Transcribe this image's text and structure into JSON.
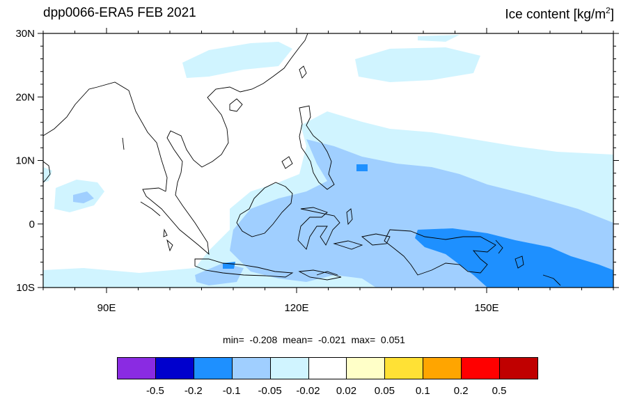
{
  "title": {
    "left": "dpp0066-ERA5 FEB 2021",
    "right_text": "Ice content  [kg/m",
    "right_sup": "2",
    "right_close": "]"
  },
  "axes": {
    "lon": {
      "ticks": [
        90,
        120,
        150
      ],
      "labels": [
        "90E",
        "120E",
        "150E"
      ],
      "range": [
        80,
        170
      ]
    },
    "lat": {
      "ticks": [
        30,
        20,
        10,
        0,
        -10
      ],
      "labels": [
        "30N",
        "20N",
        "10N",
        "0",
        "10S"
      ],
      "range": [
        -10,
        30
      ]
    }
  },
  "stats": {
    "min_label": "min=",
    "min": "-0.208",
    "mean_label": "mean=",
    "mean": "-0.021",
    "max_label": "max=",
    "max": "0.051"
  },
  "colorbar": {
    "colors": [
      "#8a2be2",
      "#0000cd",
      "#1e90ff",
      "#a0cfff",
      "#d0f4ff",
      "#ffffff",
      "#ffffc8",
      "#ffe135",
      "#ffa500",
      "#ff0000",
      "#c00000"
    ],
    "labels": [
      "-0.5",
      "-0.2",
      "-0.1",
      "-0.05",
      "-0.02",
      "0.02",
      "0.05",
      "0.1",
      "0.2",
      "0.5"
    ]
  },
  "chart_data": {
    "type": "heatmap",
    "region": "Maritime Continent",
    "lon_range": [
      80,
      170
    ],
    "lat_range": [
      -10,
      30
    ],
    "summary": {
      "min": -0.208,
      "mean": -0.021,
      "max": 0.051
    }
  }
}
